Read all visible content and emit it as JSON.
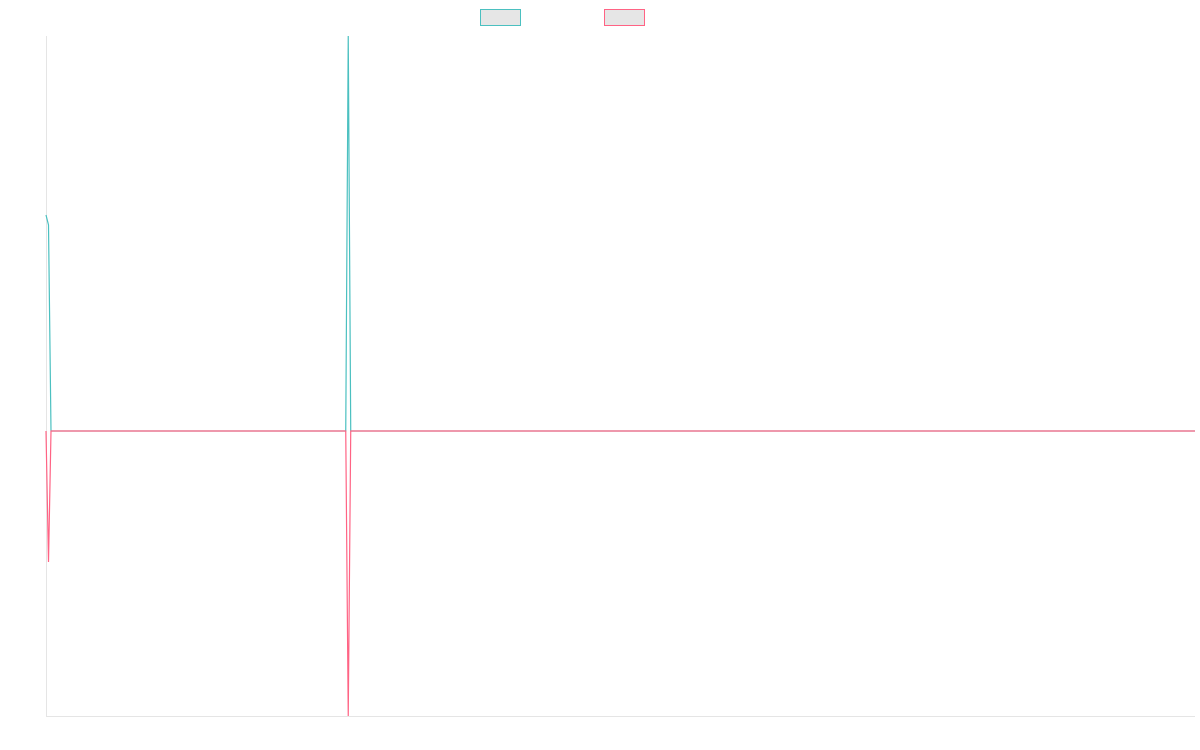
{
  "chart_data": {
    "type": "line",
    "x": [
      0,
      1,
      2,
      120,
      121,
      122,
      460
    ],
    "xlim": [
      0,
      460
    ],
    "ylim": [
      -2.85,
      3.95
    ],
    "series": [
      {
        "color": "#4bc0c0",
        "values": [
          2.16,
          2.06,
          0,
          0,
          3.95,
          0,
          0
        ]
      },
      {
        "color": "#ff6384",
        "values": [
          0,
          -1.31,
          0,
          0,
          -2.85,
          0,
          0
        ]
      }
    ],
    "legend": "top"
  }
}
